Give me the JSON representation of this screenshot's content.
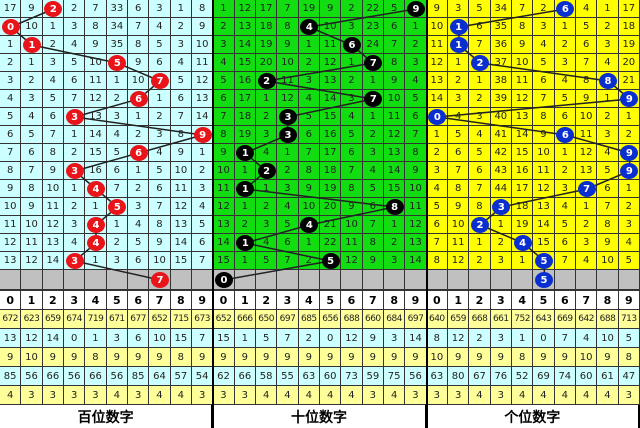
{
  "chart_data": {
    "type": "table",
    "header_digits": [
      "0",
      "1",
      "2",
      "3",
      "4",
      "5",
      "6",
      "7",
      "8",
      "9"
    ],
    "panels": [
      {
        "label": "百位数字",
        "bg": "#ccffff",
        "ball_color": "#e8141a",
        "rows": [
          [
            17,
            9,
            2,
            2,
            7,
            33,
            6,
            3,
            1,
            8
          ],
          [
            0,
            10,
            1,
            3,
            8,
            34,
            7,
            4,
            2,
            9
          ],
          [
            1,
            1,
            2,
            4,
            9,
            35,
            8,
            5,
            3,
            10
          ],
          [
            2,
            1,
            3,
            5,
            10,
            5,
            9,
            6,
            4,
            11
          ],
          [
            3,
            2,
            4,
            6,
            11,
            1,
            10,
            7,
            5,
            12
          ],
          [
            4,
            3,
            5,
            7,
            12,
            2,
            6,
            1,
            6,
            13
          ],
          [
            5,
            4,
            6,
            3,
            13,
            3,
            1,
            2,
            7,
            14
          ],
          [
            6,
            5,
            7,
            1,
            14,
            4,
            2,
            3,
            8,
            9
          ],
          [
            7,
            6,
            8,
            2,
            15,
            5,
            6,
            4,
            9,
            1
          ],
          [
            8,
            7,
            9,
            3,
            16,
            6,
            1,
            5,
            10,
            2
          ],
          [
            9,
            8,
            10,
            1,
            4,
            7,
            2,
            6,
            11,
            3
          ],
          [
            10,
            9,
            11,
            2,
            1,
            5,
            3,
            7,
            12,
            4
          ],
          [
            11,
            10,
            12,
            3,
            4,
            1,
            4,
            8,
            13,
            5
          ],
          [
            12,
            11,
            13,
            4,
            4,
            2,
            5,
            9,
            14,
            6
          ],
          [
            13,
            12,
            14,
            3,
            1,
            3,
            6,
            10,
            15,
            7
          ]
        ],
        "winners": [
          2,
          0,
          1,
          5,
          7,
          6,
          3,
          9,
          6,
          3,
          4,
          5,
          4,
          4,
          3,
          7
        ],
        "stats": [
          [
            672,
            623,
            659,
            674,
            719,
            671,
            677,
            652,
            715,
            673
          ],
          [
            13,
            12,
            14,
            0,
            1,
            3,
            6,
            10,
            15,
            7
          ],
          [
            9,
            10,
            9,
            9,
            8,
            9,
            9,
            9,
            8,
            9
          ],
          [
            85,
            56,
            66,
            56,
            66,
            56,
            85,
            64,
            57,
            54
          ],
          [
            4,
            3,
            3,
            3,
            3,
            4,
            3,
            4,
            4,
            3
          ]
        ]
      },
      {
        "label": "十位数字",
        "bg": "#11dd11",
        "ball_color": "#000000",
        "rows": [
          [
            1,
            12,
            17,
            7,
            19,
            9,
            2,
            22,
            5,
            9
          ],
          [
            2,
            13,
            18,
            8,
            4,
            10,
            3,
            23,
            6,
            1
          ],
          [
            3,
            14,
            19,
            9,
            1,
            11,
            6,
            24,
            7,
            2
          ],
          [
            4,
            15,
            20,
            10,
            2,
            12,
            1,
            7,
            8,
            3
          ],
          [
            5,
            16,
            2,
            11,
            3,
            13,
            2,
            1,
            9,
            4
          ],
          [
            6,
            17,
            1,
            12,
            4,
            14,
            3,
            7,
            10,
            5
          ],
          [
            7,
            18,
            2,
            3,
            5,
            15,
            4,
            1,
            11,
            6
          ],
          [
            8,
            19,
            3,
            3,
            6,
            16,
            5,
            2,
            12,
            7
          ],
          [
            9,
            1,
            4,
            1,
            7,
            17,
            6,
            3,
            13,
            8
          ],
          [
            10,
            1,
            2,
            2,
            8,
            18,
            7,
            4,
            14,
            9
          ],
          [
            11,
            1,
            1,
            3,
            9,
            19,
            8,
            5,
            15,
            10
          ],
          [
            12,
            1,
            2,
            4,
            10,
            20,
            9,
            6,
            8,
            11
          ],
          [
            13,
            2,
            3,
            5,
            4,
            21,
            10,
            7,
            1,
            12
          ],
          [
            14,
            1,
            4,
            6,
            1,
            22,
            11,
            8,
            2,
            13
          ],
          [
            15,
            1,
            5,
            7,
            2,
            5,
            12,
            9,
            3,
            14
          ]
        ],
        "winners": [
          9,
          4,
          6,
          7,
          2,
          7,
          3,
          3,
          1,
          2,
          1,
          8,
          4,
          1,
          5,
          0
        ],
        "stats": [
          [
            652,
            666,
            650,
            697,
            685,
            656,
            688,
            660,
            684,
            697
          ],
          [
            15,
            1,
            5,
            7,
            2,
            0,
            12,
            9,
            3,
            14
          ],
          [
            9,
            9,
            9,
            9,
            9,
            9,
            9,
            9,
            9,
            9
          ],
          [
            62,
            66,
            58,
            55,
            63,
            60,
            73,
            59,
            75,
            56
          ],
          [
            3,
            3,
            4,
            4,
            4,
            4,
            4,
            3,
            4,
            3
          ]
        ]
      },
      {
        "label": "个位数字",
        "bg": "#ffff00",
        "ball_color": "#0a2fd0",
        "rows": [
          [
            9,
            3,
            5,
            34,
            7,
            2,
            6,
            4,
            1,
            17
          ],
          [
            10,
            1,
            6,
            35,
            8,
            3,
            1,
            5,
            2,
            18
          ],
          [
            11,
            1,
            7,
            36,
            9,
            4,
            2,
            6,
            3,
            19
          ],
          [
            12,
            1,
            2,
            37,
            10,
            5,
            3,
            7,
            4,
            20
          ],
          [
            13,
            2,
            1,
            38,
            11,
            6,
            4,
            8,
            8,
            21
          ],
          [
            14,
            3,
            2,
            39,
            12,
            7,
            5,
            9,
            1,
            9
          ],
          [
            0,
            4,
            3,
            40,
            13,
            8,
            6,
            10,
            2,
            1
          ],
          [
            1,
            5,
            4,
            41,
            14,
            9,
            6,
            11,
            3,
            2
          ],
          [
            2,
            6,
            5,
            42,
            15,
            10,
            1,
            12,
            4,
            9
          ],
          [
            3,
            7,
            6,
            43,
            16,
            11,
            2,
            13,
            5,
            9
          ],
          [
            4,
            8,
            7,
            44,
            17,
            12,
            3,
            7,
            6,
            1
          ],
          [
            5,
            9,
            8,
            3,
            18,
            13,
            4,
            1,
            7,
            2
          ],
          [
            6,
            10,
            2,
            1,
            19,
            14,
            5,
            2,
            8,
            3
          ],
          [
            7,
            11,
            1,
            2,
            4,
            15,
            6,
            3,
            9,
            4
          ],
          [
            8,
            12,
            2,
            3,
            1,
            5,
            7,
            4,
            10,
            5
          ]
        ],
        "winners": [
          6,
          1,
          1,
          2,
          8,
          9,
          0,
          6,
          9,
          9,
          7,
          3,
          2,
          4,
          5,
          5
        ],
        "stats": [
          [
            640,
            659,
            668,
            661,
            752,
            643,
            669,
            642,
            688,
            713
          ],
          [
            8,
            12,
            2,
            3,
            1,
            0,
            7,
            4,
            10,
            5
          ],
          [
            10,
            9,
            9,
            9,
            8,
            9,
            9,
            10,
            9,
            8
          ],
          [
            63,
            80,
            67,
            76,
            52,
            69,
            74,
            60,
            61,
            47
          ],
          [
            3,
            3,
            4,
            3,
            4,
            4,
            4,
            4,
            4,
            3
          ]
        ]
      }
    ],
    "stat_row_colors": [
      "#ffff99",
      "#ccffff",
      "#ffff99",
      "#ccffff",
      "#ffff99"
    ],
    "pending_row_color": "#c0c0c0"
  }
}
